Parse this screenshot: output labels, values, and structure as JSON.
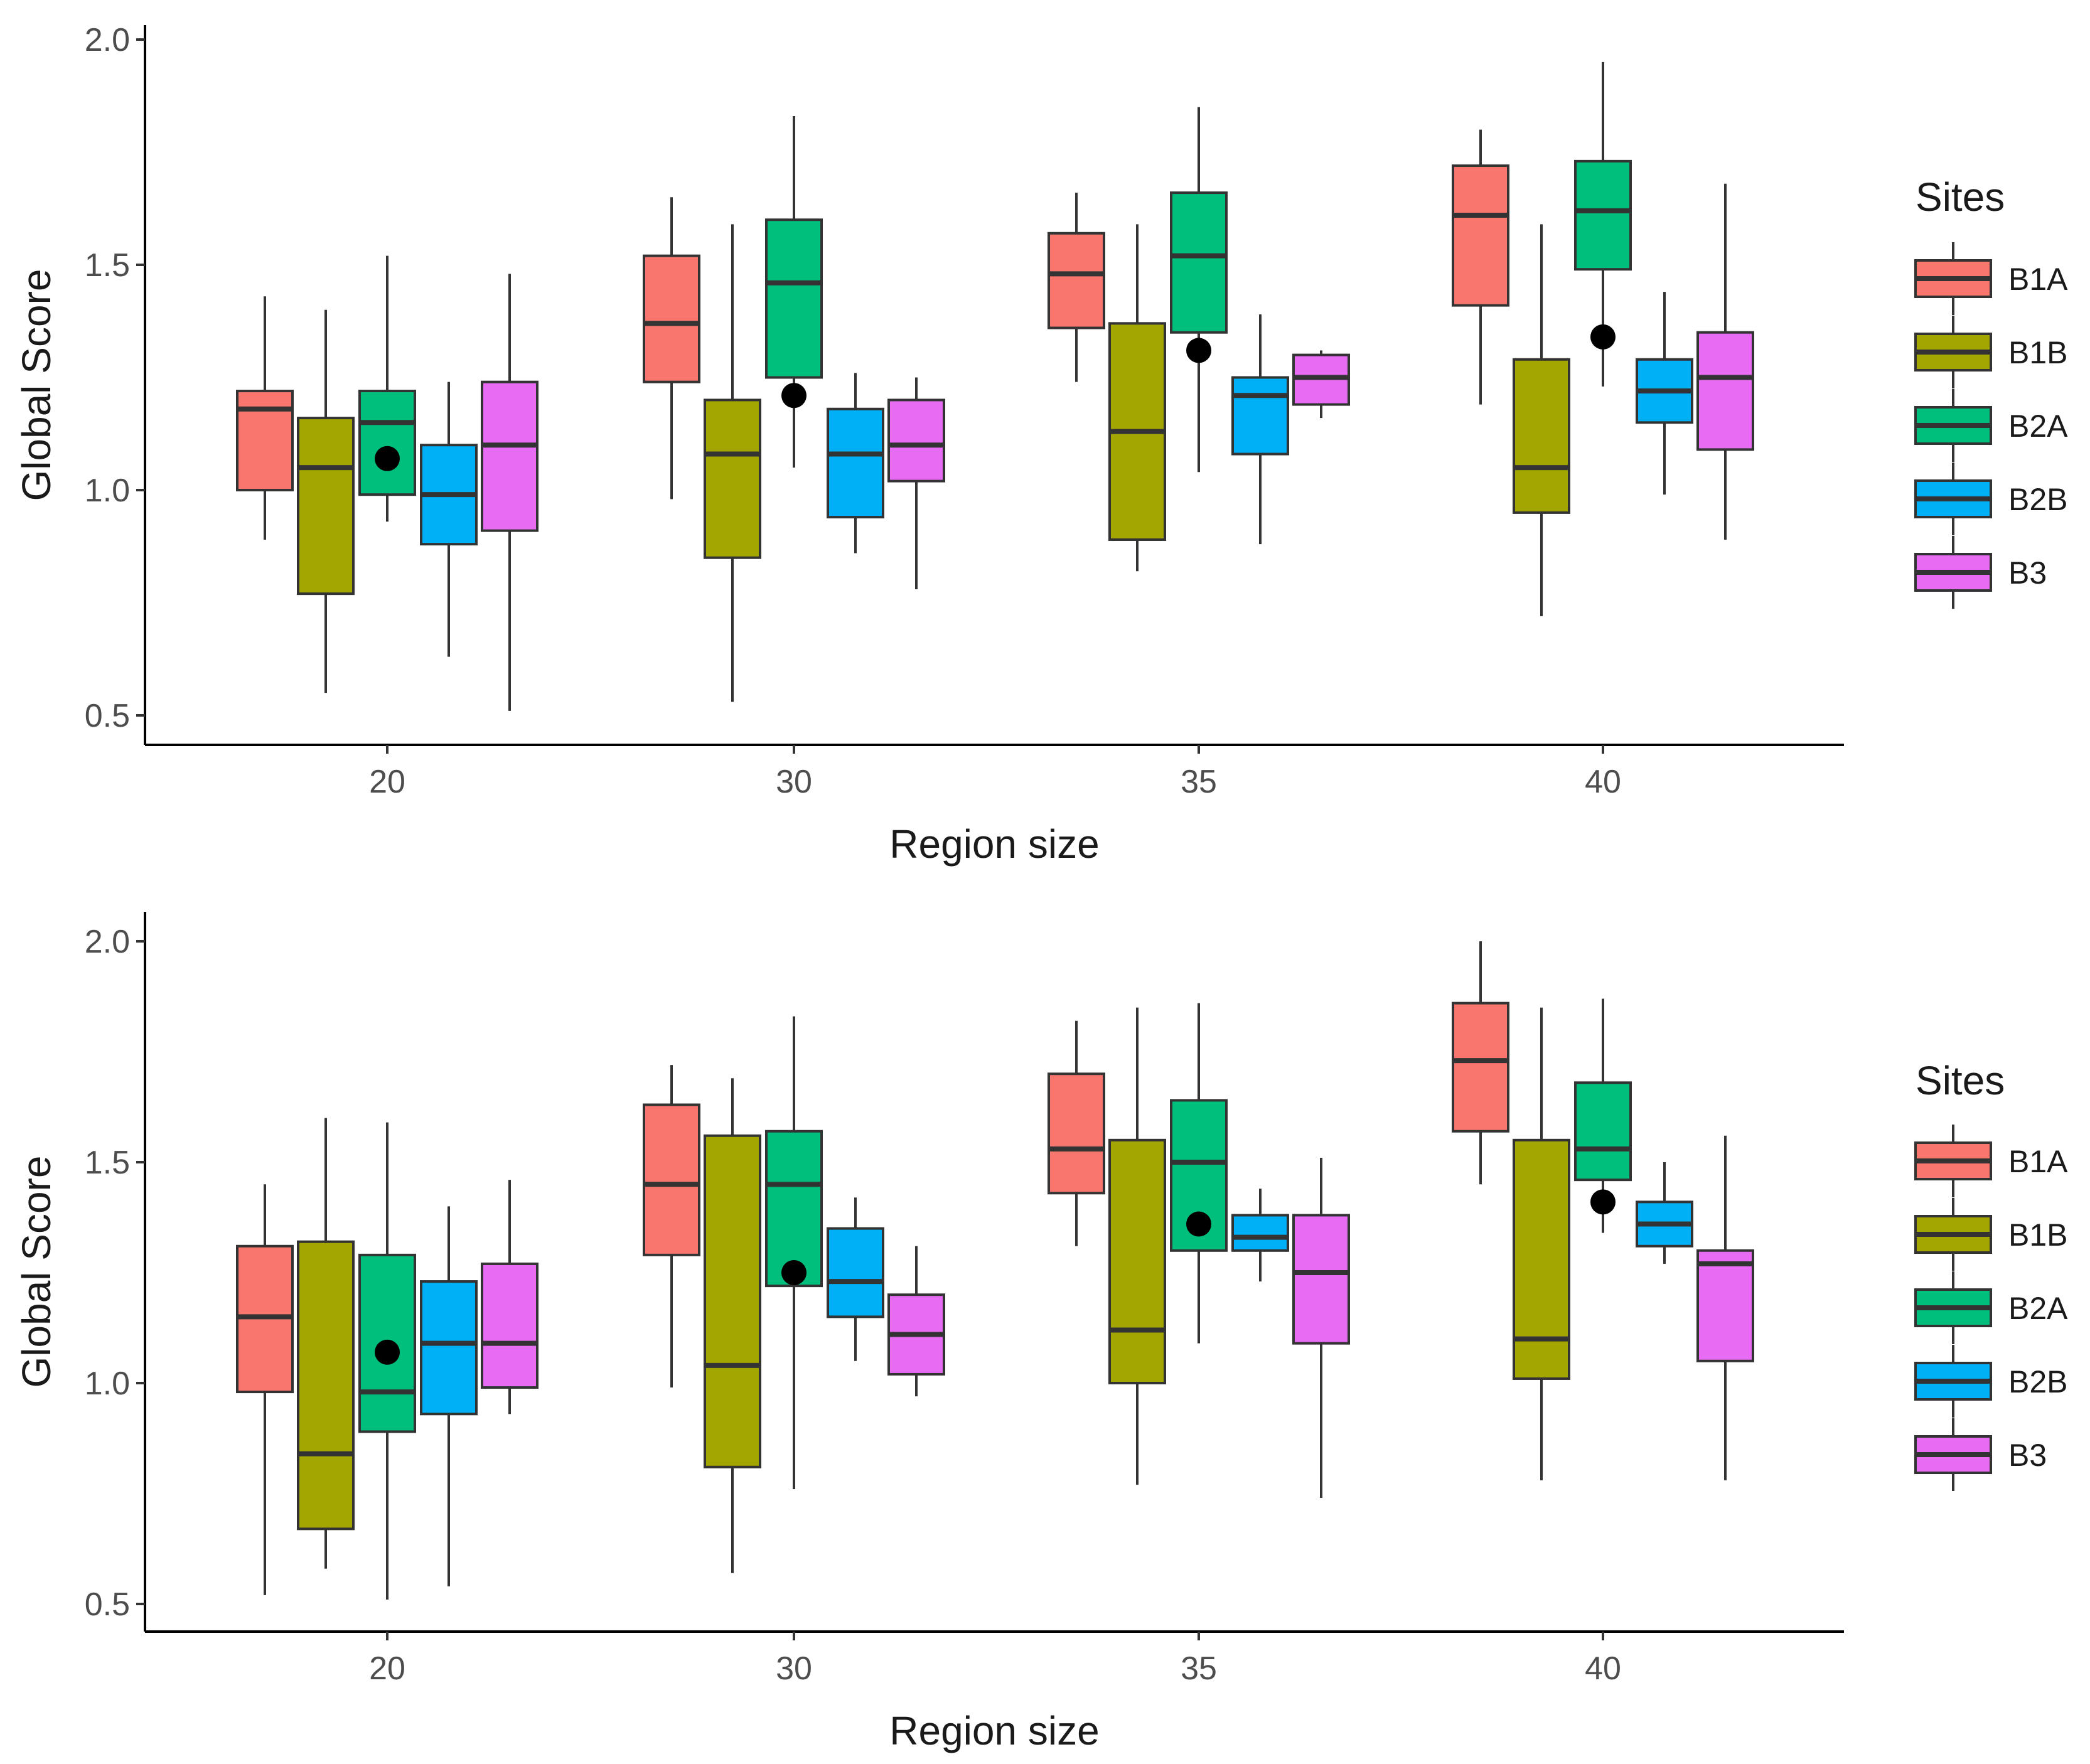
{
  "chart_data": [
    {
      "type": "boxplot",
      "xlabel": "Region size",
      "ylabel": "Global Score",
      "ylim": [
        0.44,
        2.02
      ],
      "yticks": [
        "0.5",
        "1.0",
        "1.5",
        "2.0"
      ],
      "categories": [
        "20",
        "30",
        "35",
        "40"
      ],
      "legend": {
        "title": "Sites",
        "position": "right",
        "entries": [
          "B1A",
          "B1B",
          "B2A",
          "B2B",
          "B3"
        ]
      },
      "series": [
        {
          "name": "B1A",
          "color": "#F8766D",
          "boxes": [
            {
              "min": 0.89,
              "q1": 1.0,
              "median": 1.18,
              "q3": 1.22,
              "max": 1.43
            },
            {
              "min": 0.98,
              "q1": 1.24,
              "median": 1.37,
              "q3": 1.52,
              "max": 1.65
            },
            {
              "min": 1.24,
              "q1": 1.36,
              "median": 1.48,
              "q3": 1.57,
              "max": 1.66
            },
            {
              "min": 1.19,
              "q1": 1.41,
              "median": 1.61,
              "q3": 1.72,
              "max": 1.8
            }
          ]
        },
        {
          "name": "B1B",
          "color": "#A3A500",
          "boxes": [
            {
              "min": 0.55,
              "q1": 0.77,
              "median": 1.05,
              "q3": 1.16,
              "max": 1.4
            },
            {
              "min": 0.53,
              "q1": 0.85,
              "median": 1.08,
              "q3": 1.2,
              "max": 1.59
            },
            {
              "min": 0.82,
              "q1": 0.89,
              "median": 1.13,
              "q3": 1.37,
              "max": 1.59
            },
            {
              "min": 0.72,
              "q1": 0.95,
              "median": 1.05,
              "q3": 1.29,
              "max": 1.59
            }
          ]
        },
        {
          "name": "B2A",
          "color": "#00BF7D",
          "boxes": [
            {
              "min": 0.93,
              "q1": 0.99,
              "median": 1.15,
              "q3": 1.22,
              "max": 1.52
            },
            {
              "min": 1.05,
              "q1": 1.25,
              "median": 1.46,
              "q3": 1.6,
              "max": 1.83
            },
            {
              "min": 1.04,
              "q1": 1.35,
              "median": 1.52,
              "q3": 1.66,
              "max": 1.85
            },
            {
              "min": 1.23,
              "q1": 1.49,
              "median": 1.62,
              "q3": 1.73,
              "max": 1.95
            }
          ]
        },
        {
          "name": "B2B",
          "color": "#00B0F6",
          "boxes": [
            {
              "min": 0.63,
              "q1": 0.88,
              "median": 0.99,
              "q3": 1.1,
              "max": 1.24
            },
            {
              "min": 0.86,
              "q1": 0.94,
              "median": 1.08,
              "q3": 1.18,
              "max": 1.26
            },
            {
              "min": 0.88,
              "q1": 1.08,
              "median": 1.21,
              "q3": 1.25,
              "max": 1.39
            },
            {
              "min": 0.99,
              "q1": 1.15,
              "median": 1.22,
              "q3": 1.29,
              "max": 1.44
            }
          ]
        },
        {
          "name": "B3",
          "color": "#E76BF3",
          "boxes": [
            {
              "min": 0.51,
              "q1": 0.91,
              "median": 1.1,
              "q3": 1.24,
              "max": 1.48
            },
            {
              "min": 0.78,
              "q1": 1.02,
              "median": 1.1,
              "q3": 1.2,
              "max": 1.25
            },
            {
              "min": 1.16,
              "q1": 1.19,
              "median": 1.25,
              "q3": 1.3,
              "max": 1.31
            },
            {
              "min": 0.89,
              "q1": 1.09,
              "median": 1.25,
              "q3": 1.35,
              "max": 1.68
            }
          ]
        }
      ],
      "means": [
        1.07,
        1.21,
        1.31,
        1.34
      ]
    },
    {
      "type": "boxplot",
      "xlabel": "Region size",
      "ylabel": "Global Score",
      "ylim": [
        0.44,
        2.07
      ],
      "yticks": [
        "0.5",
        "1.0",
        "1.5",
        "2.0"
      ],
      "categories": [
        "20",
        "30",
        "35",
        "40"
      ],
      "legend": {
        "title": "Sites",
        "position": "right",
        "entries": [
          "B1A",
          "B1B",
          "B2A",
          "B2B",
          "B3"
        ]
      },
      "series": [
        {
          "name": "B1A",
          "color": "#F8766D",
          "boxes": [
            {
              "min": 0.52,
              "q1": 0.98,
              "median": 1.15,
              "q3": 1.31,
              "max": 1.45
            },
            {
              "min": 0.99,
              "q1": 1.29,
              "median": 1.45,
              "q3": 1.63,
              "max": 1.72
            },
            {
              "min": 1.31,
              "q1": 1.43,
              "median": 1.53,
              "q3": 1.7,
              "max": 1.82
            },
            {
              "min": 1.45,
              "q1": 1.57,
              "median": 1.73,
              "q3": 1.86,
              "max": 2.0
            }
          ]
        },
        {
          "name": "B1B",
          "color": "#A3A500",
          "boxes": [
            {
              "min": 0.58,
              "q1": 0.67,
              "median": 0.84,
              "q3": 1.32,
              "max": 1.6
            },
            {
              "min": 0.57,
              "q1": 0.81,
              "median": 1.04,
              "q3": 1.56,
              "max": 1.69
            },
            {
              "min": 0.77,
              "q1": 1.0,
              "median": 1.12,
              "q3": 1.55,
              "max": 1.85
            },
            {
              "min": 0.78,
              "q1": 1.01,
              "median": 1.1,
              "q3": 1.55,
              "max": 1.85
            }
          ]
        },
        {
          "name": "B2A",
          "color": "#00BF7D",
          "boxes": [
            {
              "min": 0.51,
              "q1": 0.89,
              "median": 0.98,
              "q3": 1.29,
              "max": 1.59
            },
            {
              "min": 0.76,
              "q1": 1.22,
              "median": 1.45,
              "q3": 1.57,
              "max": 1.83
            },
            {
              "min": 1.09,
              "q1": 1.3,
              "median": 1.5,
              "q3": 1.64,
              "max": 1.86
            },
            {
              "min": 1.34,
              "q1": 1.46,
              "median": 1.53,
              "q3": 1.68,
              "max": 1.87
            }
          ]
        },
        {
          "name": "B2B",
          "color": "#00B0F6",
          "boxes": [
            {
              "min": 0.54,
              "q1": 0.93,
              "median": 1.09,
              "q3": 1.23,
              "max": 1.4
            },
            {
              "min": 1.05,
              "q1": 1.15,
              "median": 1.23,
              "q3": 1.35,
              "max": 1.42
            },
            {
              "min": 1.23,
              "q1": 1.3,
              "median": 1.33,
              "q3": 1.38,
              "max": 1.44
            },
            {
              "min": 1.27,
              "q1": 1.31,
              "median": 1.36,
              "q3": 1.41,
              "max": 1.5
            }
          ]
        },
        {
          "name": "B3",
          "color": "#E76BF3",
          "boxes": [
            {
              "min": 0.93,
              "q1": 0.99,
              "median": 1.09,
              "q3": 1.27,
              "max": 1.46
            },
            {
              "min": 0.97,
              "q1": 1.02,
              "median": 1.11,
              "q3": 1.2,
              "max": 1.31
            },
            {
              "min": 0.74,
              "q1": 1.09,
              "median": 1.25,
              "q3": 1.38,
              "max": 1.51
            },
            {
              "min": 0.78,
              "q1": 1.05,
              "median": 1.27,
              "q3": 1.3,
              "max": 1.56
            }
          ]
        }
      ],
      "means": [
        1.07,
        1.25,
        1.36,
        1.41
      ]
    }
  ]
}
